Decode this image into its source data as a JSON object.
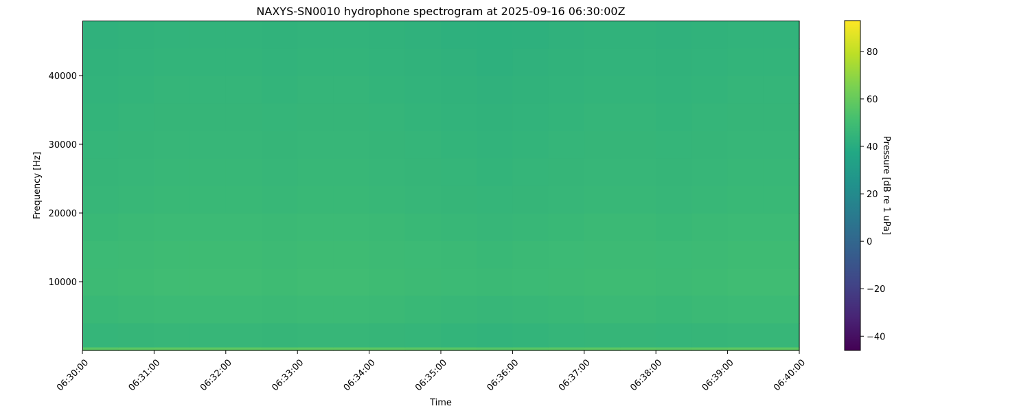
{
  "chart_data": {
    "type": "heatmap",
    "title": "NAXYS-SN0010 hydrophone spectrogram at 2025-09-16 06:30:00Z",
    "xlabel": "Time",
    "ylabel": "Frequency [Hz]",
    "colorbar_label": "Pressure [dB re 1 uPa]",
    "colormap": "viridis",
    "clim": [
      -46,
      93
    ],
    "xlim": [
      "06:30:00",
      "06:40:00"
    ],
    "ylim": [
      0,
      48000
    ],
    "x_ticks": [
      "06:30:00",
      "06:31:00",
      "06:32:00",
      "06:33:00",
      "06:34:00",
      "06:35:00",
      "06:36:00",
      "06:37:00",
      "06:38:00",
      "06:39:00",
      "06:40:00"
    ],
    "y_ticks": [
      "10000",
      "20000",
      "30000",
      "40000"
    ],
    "y_tick_values": [
      10000,
      20000,
      30000,
      40000
    ],
    "colorbar_ticks": [
      "−40",
      "−20",
      "0",
      "20",
      "40",
      "60",
      "80"
    ],
    "colorbar_tick_values": [
      -40,
      -20,
      0,
      20,
      40,
      60,
      80
    ],
    "time_bin_starts": [
      "06:30:00",
      "06:30:30",
      "06:31:00",
      "06:31:30",
      "06:32:00",
      "06:32:30",
      "06:33:00",
      "06:33:30",
      "06:34:00",
      "06:34:30",
      "06:35:00",
      "06:35:30",
      "06:36:00",
      "06:36:30",
      "06:37:00",
      "06:37:30",
      "06:38:00",
      "06:38:30",
      "06:39:00",
      "06:39:30"
    ],
    "freq_edges_hz": [
      0,
      500,
      4000,
      8000,
      12000,
      16000,
      20000,
      24000,
      28000,
      32000,
      36000,
      40000,
      44000,
      48000
    ],
    "values_db": [
      [
        57,
        57.5,
        58,
        58,
        58,
        57.5,
        58,
        58,
        57.5,
        57,
        56.5,
        56,
        56.5,
        57,
        57.5,
        57.5,
        57,
        57.5,
        58,
        58
      ],
      [
        45,
        45.5,
        46,
        46,
        46,
        45.5,
        46,
        46,
        45.5,
        45,
        44.5,
        44,
        44.5,
        45,
        45.5,
        45.5,
        45,
        45.5,
        46,
        46
      ],
      [
        47,
        47.5,
        48,
        48,
        48,
        47.5,
        48,
        48,
        47.5,
        47,
        46.5,
        46,
        46.5,
        47,
        47.5,
        47.5,
        47,
        47.5,
        48,
        48
      ],
      [
        48.5,
        49,
        49.5,
        49.5,
        49.5,
        49,
        49.5,
        49.5,
        49,
        48.5,
        48,
        47.5,
        48,
        48.5,
        49,
        49,
        48.5,
        49,
        49.5,
        49.5
      ],
      [
        48,
        48.5,
        49,
        49,
        49,
        48.5,
        49,
        49,
        48.5,
        48,
        47.5,
        47,
        47.5,
        48,
        48.5,
        48.5,
        48,
        48.5,
        49,
        49
      ],
      [
        47,
        47.5,
        48,
        48,
        48,
        47.5,
        48,
        48,
        47.5,
        47,
        46.5,
        46,
        46.5,
        47,
        47.5,
        47.5,
        47,
        47.5,
        48,
        48
      ],
      [
        46,
        46.5,
        47,
        47,
        47,
        46.5,
        47,
        47,
        46.5,
        46,
        45.5,
        45,
        45.5,
        46,
        46.5,
        46.5,
        46,
        46.5,
        47,
        47
      ],
      [
        45.5,
        46,
        46.5,
        46.5,
        46.5,
        46,
        46.5,
        46.5,
        46,
        45.5,
        45,
        44.5,
        45,
        45.5,
        46,
        46,
        45.5,
        46,
        46.5,
        46.5
      ],
      [
        45,
        45.5,
        46,
        46,
        46,
        45.5,
        46,
        46,
        45.5,
        45,
        44.5,
        44,
        44.5,
        45,
        45.5,
        45.5,
        45,
        45.5,
        46,
        46
      ],
      [
        44.5,
        45,
        45.5,
        45.5,
        45.5,
        45,
        45.5,
        45.5,
        45,
        44.5,
        44,
        43.5,
        44,
        44.5,
        45,
        45,
        44.5,
        45,
        45.5,
        45.5
      ],
      [
        44,
        44.5,
        45,
        45,
        45,
        44.5,
        45,
        45,
        44.5,
        44,
        43.5,
        43,
        43.5,
        44,
        44.5,
        44.5,
        44,
        44.5,
        45,
        45
      ],
      [
        43.5,
        44,
        44.5,
        44.5,
        44.5,
        44,
        44.5,
        44.5,
        44,
        43.5,
        43,
        42.5,
        43,
        43.5,
        44,
        44,
        43.5,
        44,
        44.5,
        44.5
      ],
      [
        43,
        43.5,
        44,
        44,
        44,
        43.5,
        44,
        44,
        43.5,
        43,
        42.5,
        42,
        42.5,
        43,
        43.5,
        43.5,
        43,
        43.5,
        44,
        44
      ]
    ],
    "grid": false
  }
}
